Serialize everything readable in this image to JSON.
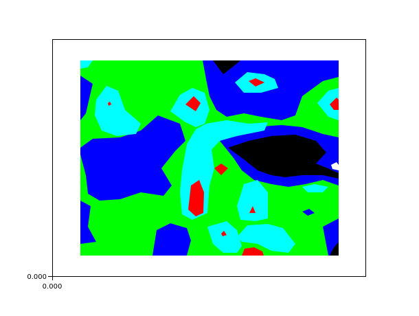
{
  "chart_data": {
    "type": "heatmap",
    "title": "",
    "xlabel": "",
    "ylabel": "",
    "x_tick_labels": [
      "0.000"
    ],
    "y_tick_labels": [
      "0.000"
    ],
    "grid": false,
    "legend": "none",
    "colors": {
      "level_0": "#000000",
      "level_1": "#0000ff",
      "level_2": "#00ff00",
      "level_3": "#00ffff",
      "level_4": "#ff0000",
      "level_5": "#ffffff"
    }
  }
}
